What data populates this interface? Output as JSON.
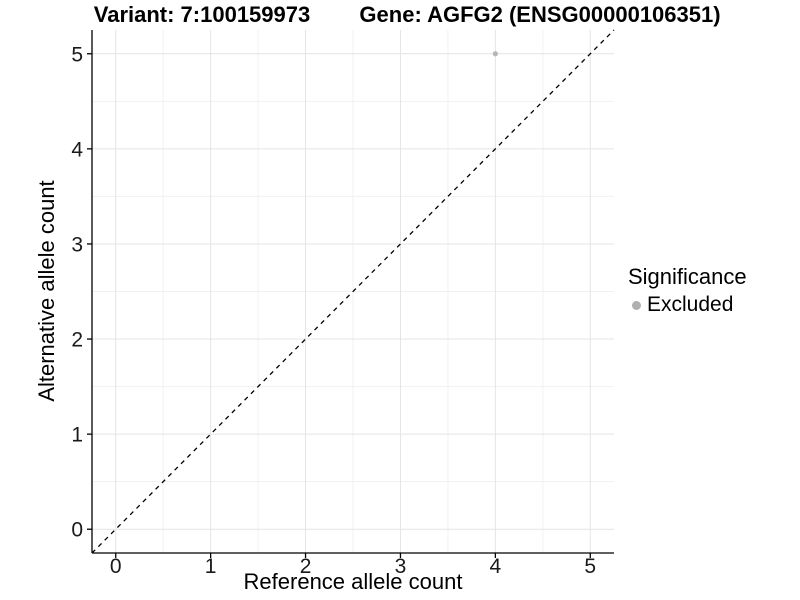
{
  "chart_data": {
    "type": "scatter",
    "title_left": "Variant: 7:100159973",
    "title_right": "Gene: AGFG2 (ENSG00000106351)",
    "xlabel": "Reference allele count",
    "ylabel": "Alternative allele count",
    "xlim": [
      -0.25,
      5.25
    ],
    "ylim": [
      -0.25,
      5.25
    ],
    "xticks": [
      0,
      1,
      2,
      3,
      4,
      5
    ],
    "yticks": [
      0,
      1,
      2,
      3,
      4,
      5
    ],
    "x_minor_ticks": [
      0.5,
      1.5,
      2.5,
      3.5,
      4.5
    ],
    "y_minor_ticks": [
      0.5,
      1.5,
      2.5,
      3.5,
      4.5
    ],
    "grid": true,
    "series": [
      {
        "name": "Excluded",
        "color": "#b8b8b8",
        "points": [
          {
            "x": 4,
            "y": 5
          }
        ]
      }
    ],
    "reference_line": {
      "type": "identity",
      "style": "dashed",
      "color": "#000000"
    },
    "legend": {
      "title": "Significance",
      "position": "right",
      "entries": [
        {
          "label": "Excluded",
          "color": "#b0b0b0",
          "marker": "circle"
        }
      ]
    },
    "colors": {
      "background": "#ffffff",
      "panel_background": "#ffffff",
      "grid_major": "#e4e4e4",
      "grid_minor": "#f1f1f1",
      "axis_line": "#000000",
      "tick_text": "#1a1a1a"
    }
  }
}
